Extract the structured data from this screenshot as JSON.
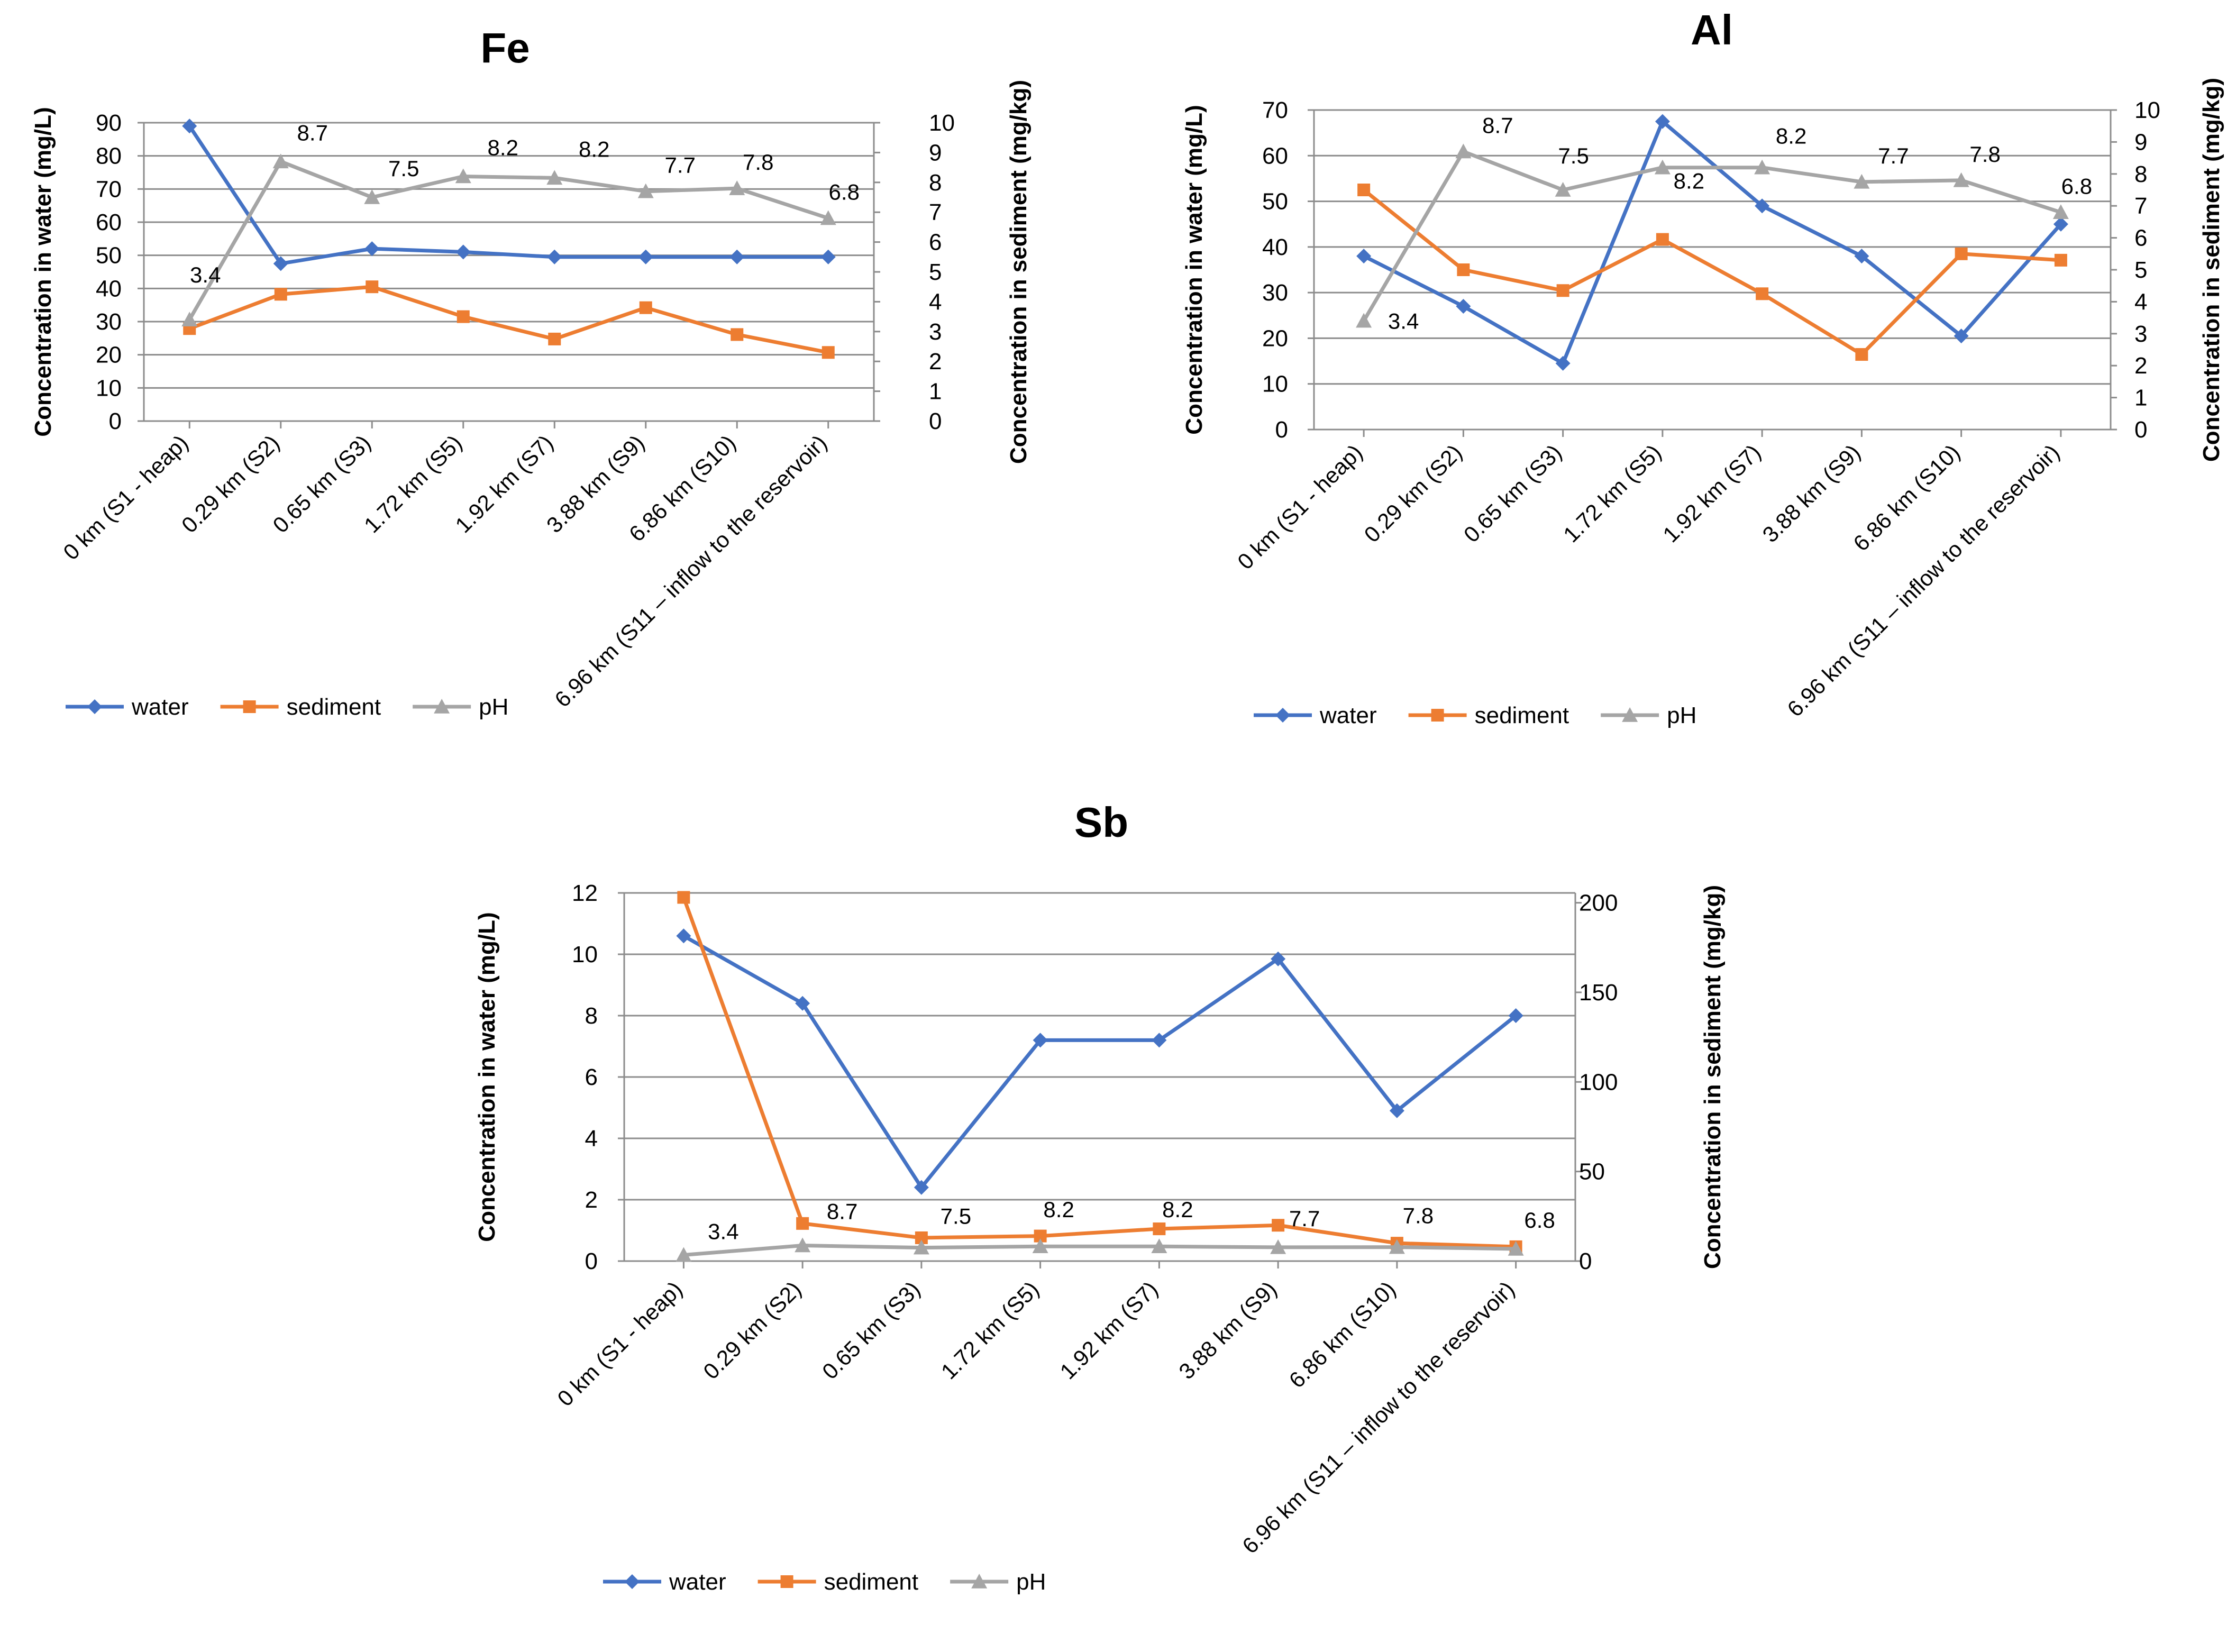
{
  "chart_data": [
    {
      "type": "line",
      "title": "Fe",
      "categories": [
        "0 km (S1 - heap)",
        "0.29 km (S2)",
        "0.65 km (S3)",
        "1.72 km (S5)",
        "1.92 km (S7)",
        "3.88 km (S9)",
        "6.86 km (S10)",
        "6.96 km (S11 – inflow to the reservoir)"
      ],
      "ylabel": "Concentration in water (mg/L)",
      "y2label": "Concentration in sediment (mg/kg)",
      "ylim": [
        0,
        90
      ],
      "yticks": [
        "0",
        "10",
        "20",
        "30",
        "40",
        "50",
        "60",
        "70",
        "80",
        "90"
      ],
      "y2lim": [
        0,
        10
      ],
      "y2ticks": [
        "0",
        "1",
        "2",
        "3",
        "4",
        "5",
        "6",
        "7",
        "8",
        "9",
        "10"
      ],
      "grid": true,
      "series": [
        {
          "name": "water",
          "axis": "left",
          "color": "#4472C4",
          "marker": "diamond",
          "values": [
            89,
            47.5,
            52,
            51,
            49.5,
            49.5,
            49.5,
            49.5
          ]
        },
        {
          "name": "sediment",
          "axis": "right",
          "color": "#ED7D31",
          "marker": "square",
          "values": [
            3.1,
            4.25,
            4.5,
            3.5,
            2.75,
            3.8,
            2.9,
            2.3
          ]
        },
        {
          "name": "pH",
          "axis": "right",
          "color": "#A5A5A5",
          "marker": "triangle",
          "values": [
            3.4,
            8.7,
            7.5,
            8.2,
            8.15,
            7.7,
            7.8,
            6.8
          ],
          "labels": [
            "3.4",
            "8.7",
            "7.5",
            "8.2",
            "8.2",
            "7.7",
            "7.8",
            "6.8"
          ]
        }
      ],
      "legend": [
        "water",
        "sediment",
        "pH"
      ],
      "legend_position": "bottom-left"
    },
    {
      "type": "line",
      "title": "Al",
      "categories": [
        "0 km (S1 - heap)",
        "0.29 km (S2)",
        "0.65 km (S3)",
        "1.72 km (S5)",
        "1.92 km (S7)",
        "3.88 km (S9)",
        "6.86 km (S10)",
        "6.96 km (S11 – inflow to the reservoir)"
      ],
      "ylabel": "Concentration in water (mg/L)",
      "y2label": "Concentration in sediment (mg/kg)",
      "ylim": [
        0,
        70
      ],
      "yticks": [
        "0",
        "10",
        "20",
        "30",
        "40",
        "50",
        "60",
        "70"
      ],
      "y2lim": [
        0,
        10
      ],
      "y2ticks": [
        "0",
        "1",
        "2",
        "3",
        "4",
        "5",
        "6",
        "7",
        "8",
        "9",
        "10"
      ],
      "grid": true,
      "series": [
        {
          "name": "water",
          "axis": "left",
          "color": "#4472C4",
          "marker": "diamond",
          "values": [
            38,
            27,
            14.5,
            67.5,
            49,
            38,
            20.5,
            45
          ]
        },
        {
          "name": "sediment",
          "axis": "right",
          "color": "#ED7D31",
          "marker": "square",
          "values": [
            7.5,
            5,
            4.35,
            5.95,
            4.25,
            2.35,
            5.5,
            5.3
          ]
        },
        {
          "name": "pH",
          "axis": "right",
          "color": "#A5A5A5",
          "marker": "triangle",
          "values": [
            3.4,
            8.7,
            7.5,
            8.2,
            8.2,
            7.75,
            7.8,
            6.8
          ],
          "labels": [
            "3.4",
            "8.7",
            "7.5",
            "8.2",
            "8.2",
            "7.7",
            "7.8",
            "6.8"
          ]
        }
      ],
      "legend": [
        "water",
        "sediment",
        "pH"
      ],
      "legend_position": "bottom-left"
    },
    {
      "type": "line",
      "title": "Sb",
      "categories": [
        "0 km (S1 - heap)",
        "0.29 km (S2)",
        "0.65 km (S3)",
        "1.72 km (S5)",
        "1.92 km (S7)",
        "3.88 km (S9)",
        "6.86 km (S10)",
        "6.96 km (S11 – inflow to the reservoir)"
      ],
      "ylabel": "Concentration in water (mg/L)",
      "y2label": "Concentration in sediment (mg/kg)",
      "ylim": [
        0,
        12
      ],
      "yticks": [
        "0",
        "2",
        "4",
        "6",
        "8",
        "10",
        "12"
      ],
      "y2lim": [
        0,
        205.5
      ],
      "y2ticks": [
        "0",
        "50",
        "100",
        "150",
        "200"
      ],
      "y2tick_values": [
        0,
        50,
        100,
        150,
        200
      ],
      "grid": true,
      "series": [
        {
          "name": "water",
          "axis": "left",
          "color": "#4472C4",
          "marker": "diamond",
          "values": [
            10.6,
            8.4,
            2.4,
            7.2,
            7.2,
            9.85,
            4.9,
            8.0
          ]
        },
        {
          "name": "sediment",
          "axis": "right",
          "color": "#ED7D31",
          "marker": "square",
          "values": [
            203,
            21,
            13,
            14,
            18,
            20,
            10,
            8
          ]
        },
        {
          "name": "pH",
          "axis": "right",
          "color": "#A5A5A5",
          "marker": "triangle",
          "values": [
            3.4,
            8.7,
            7.5,
            8.2,
            8.2,
            7.7,
            7.8,
            6.8
          ],
          "labels": [
            "3.4",
            "8.7",
            "7.5",
            "8.2",
            "8.2",
            "7.7",
            "7.8",
            "6.8"
          ]
        }
      ],
      "legend": [
        "water",
        "sediment",
        "pH"
      ],
      "legend_position": "bottom-left"
    }
  ]
}
